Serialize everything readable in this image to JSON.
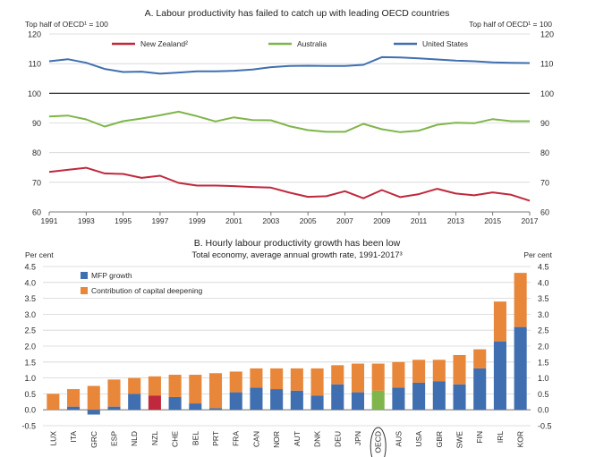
{
  "chart_data": [
    {
      "type": "line",
      "title": "A. Labour productivity has failed to catch up with leading OECD countries",
      "ylabel_left": "Top half of OECD¹ = 100",
      "ylabel_right": "Top half of OECD¹ = 100",
      "ylim": [
        60,
        120
      ],
      "yticks": [
        "120",
        "110",
        "100",
        "90",
        "80",
        "70",
        "60"
      ],
      "reference_line": 100,
      "x": [
        1991,
        1992,
        1993,
        1994,
        1995,
        1996,
        1997,
        1998,
        1999,
        2000,
        2001,
        2002,
        2003,
        2004,
        2005,
        2006,
        2007,
        2008,
        2009,
        2010,
        2011,
        2012,
        2013,
        2014,
        2015,
        2016,
        2017
      ],
      "xtick_labels": [
        "1991",
        "1993",
        "1995",
        "1997",
        "1999",
        "2001",
        "2003",
        "2005",
        "2007",
        "2009",
        "2011",
        "2013",
        "2015",
        "2017"
      ],
      "grid": true,
      "series": [
        {
          "name": "New Zealand²",
          "color": "#c0283d",
          "values": [
            73.5,
            74.2,
            74.9,
            73.0,
            72.8,
            71.5,
            72.2,
            69.8,
            68.9,
            68.9,
            68.7,
            68.4,
            68.2,
            66.5,
            65.1,
            65.3,
            67.0,
            64.6,
            67.4,
            65.0,
            66.0,
            67.8,
            66.2,
            65.6,
            66.6,
            65.8,
            63.8
          ]
        },
        {
          "name": "Australia",
          "color": "#7fb54a",
          "values": [
            92.2,
            92.5,
            91.2,
            88.8,
            90.6,
            91.5,
            92.6,
            93.8,
            92.3,
            90.5,
            91.9,
            91.0,
            90.9,
            88.9,
            87.6,
            87.0,
            87.0,
            89.7,
            87.9,
            86.9,
            87.4,
            89.4,
            90.1,
            89.9,
            91.3,
            90.6,
            90.6
          ]
        },
        {
          "name": "United States",
          "color": "#3f6fb0",
          "values": [
            110.8,
            111.5,
            110.3,
            108.2,
            107.2,
            107.3,
            106.6,
            107.0,
            107.4,
            107.4,
            107.6,
            108.0,
            108.8,
            109.2,
            109.3,
            109.2,
            109.2,
            109.6,
            112.2,
            112.1,
            111.8,
            111.4,
            111.0,
            110.8,
            110.4,
            110.3,
            110.2
          ]
        }
      ]
    },
    {
      "type": "bar",
      "stacked": true,
      "title": "B. Hourly labour productivity growth has been low",
      "subtitle": "Total economy, average annual growth rate, 1991-2017³",
      "ylabel_left": "Per cent",
      "ylabel_right": "Per cent",
      "ylim": [
        -0.5,
        4.5
      ],
      "yticks": [
        "4.5",
        "4.0",
        "3.5",
        "3.0",
        "2.5",
        "2.0",
        "1.5",
        "1.0",
        "0.5",
        "0.0",
        "-0.5"
      ],
      "categories": [
        "LUX",
        "ITA",
        "GRC",
        "ESP",
        "NLD",
        "NZL",
        "CHE",
        "BEL",
        "PRT",
        "FRA",
        "CAN",
        "NOR",
        "AUT",
        "DNK",
        "DEU",
        "JPN",
        "OECD",
        "AUS",
        "USA",
        "GBR",
        "SWE",
        "FIN",
        "IRL",
        "KOR"
      ],
      "highlight": {
        "NZL": "#c0283d",
        "OECD": "#7fb54a"
      },
      "circled_category": "OECD",
      "grid": true,
      "series": [
        {
          "name": "MFP growth",
          "color": "#3f6fb0",
          "values": [
            0.0,
            0.1,
            -0.15,
            0.1,
            0.5,
            0.45,
            0.4,
            0.2,
            0.05,
            0.55,
            0.7,
            0.65,
            0.6,
            0.45,
            0.8,
            0.55,
            0.6,
            0.7,
            0.85,
            0.9,
            0.8,
            1.3,
            2.15,
            2.6
          ]
        },
        {
          "name": "Contribution of capital deepening",
          "color": "#e8873a",
          "values": [
            0.5,
            0.55,
            0.75,
            0.85,
            0.5,
            0.6,
            0.7,
            0.9,
            1.1,
            0.65,
            0.6,
            0.65,
            0.7,
            0.85,
            0.6,
            0.9,
            0.85,
            0.8,
            0.72,
            0.67,
            0.92,
            0.6,
            1.25,
            1.7
          ]
        }
      ]
    }
  ]
}
